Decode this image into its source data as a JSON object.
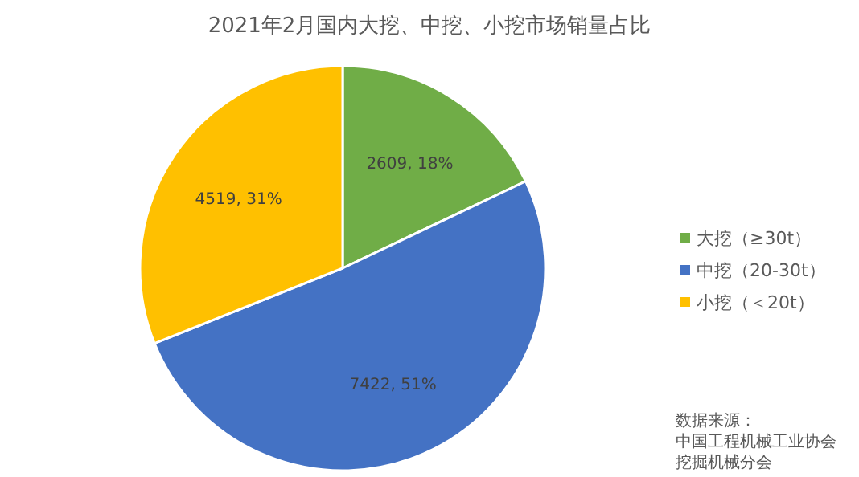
{
  "chart_data": {
    "type": "pie",
    "title": "2021年2月国内大挖、中挖、小挖市场销量占比",
    "categories": [
      "大挖（≥30t）",
      "中挖（20-30t）",
      "小挖（＜20t）"
    ],
    "values": [
      2609,
      7422,
      4519
    ],
    "colors": [
      "#70ad47",
      "#4472c4",
      "#ffc000"
    ],
    "value_labels": [
      "2609, 18%",
      "7422, 51%",
      "4519, 31%"
    ],
    "legend": "right",
    "annotations": [
      "数据来源：",
      "中国工程机械工业协会",
      "挖掘机械分会"
    ]
  }
}
